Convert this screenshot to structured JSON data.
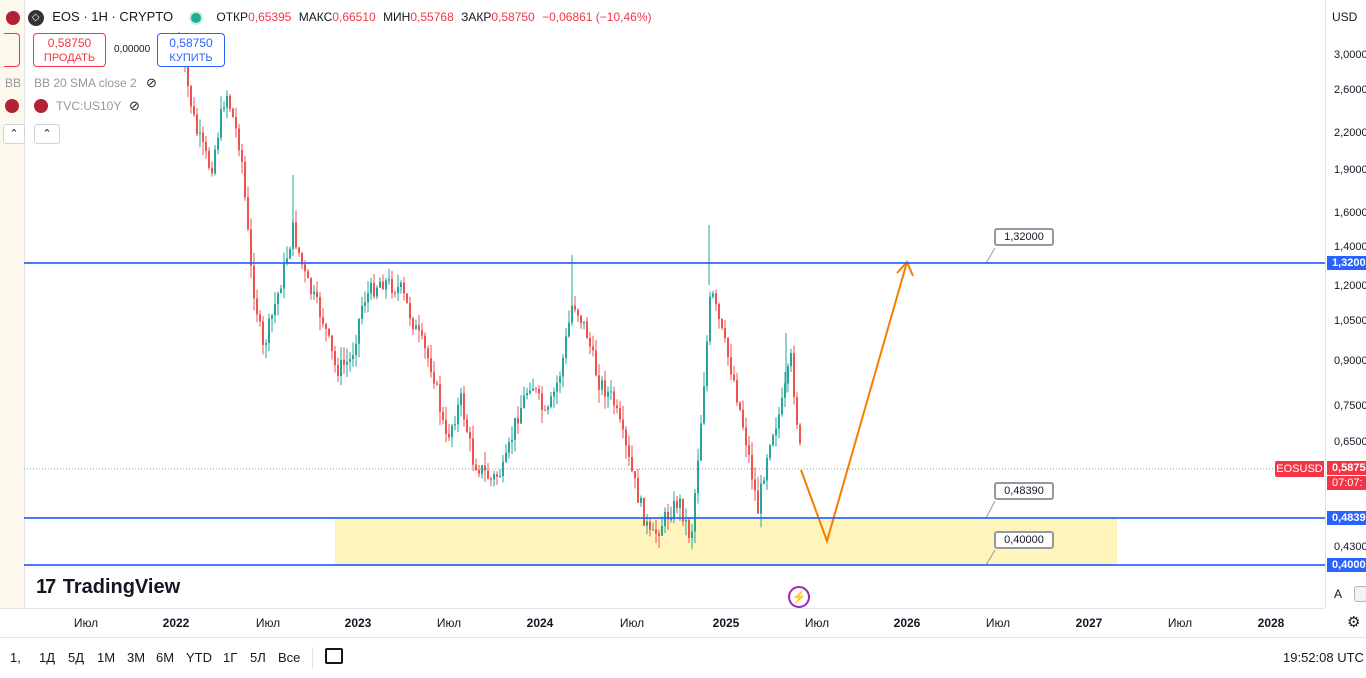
{
  "symbol": {
    "name": "EOS · 1H · CRYPTO",
    "open_label": "ОТКР",
    "open_value": "0,65395",
    "high_label": "МАКС",
    "high_value": "0,66510",
    "low_label": "МИН",
    "low_value": "0,55768",
    "close_label": "ЗАКР",
    "close_value": "0,58750",
    "change": "−0,06861 (−10,46%)"
  },
  "trade": {
    "sell_price": "0,58750",
    "sell_label": "ПРОДАТЬ",
    "spread": "0,00000",
    "buy_price": "0,58750",
    "buy_label": "КУПИТЬ"
  },
  "indicators": {
    "bb_label": "BB 20 SMA close 2",
    "bb_short": "BB",
    "tvc_label": "TVC:US10Y"
  },
  "price_axis": {
    "currency": "USD",
    "labels": [
      "3,0000",
      "2,6000",
      "2,2000",
      "1,9000",
      "1,6000",
      "1,4000",
      "1,2000",
      "1,0500",
      "0,9000",
      "0,7500",
      "0,6500",
      "0,4300"
    ],
    "badge_1320": "1,3200",
    "badge_current": "0,5875",
    "badge_timer": "07:07:",
    "badge_4839": "0,4839",
    "badge_4000": "0,4000",
    "badge_symbol": "EOSUSD"
  },
  "levels": {
    "upper": "1,32000",
    "middle": "0,48390",
    "lower": "0,40000"
  },
  "time_axis": {
    "labels": [
      {
        "text": "Июл",
        "year": false
      },
      {
        "text": "2022",
        "year": true
      },
      {
        "text": "Июл",
        "year": false
      },
      {
        "text": "2023",
        "year": true
      },
      {
        "text": "Июл",
        "year": false
      },
      {
        "text": "2024",
        "year": true
      },
      {
        "text": "Июл",
        "year": false
      },
      {
        "text": "2025",
        "year": true
      },
      {
        "text": "Июл",
        "year": false
      },
      {
        "text": "2026",
        "year": true
      },
      {
        "text": "Июл",
        "year": false
      },
      {
        "text": "2027",
        "year": true
      },
      {
        "text": "Июл",
        "year": false
      },
      {
        "text": "2028",
        "year": true
      }
    ]
  },
  "branding": {
    "logo_mark": "17",
    "logo_text": "TradingView"
  },
  "bottom_bar": {
    "first": "1,",
    "timeframes": [
      "1Д",
      "5Д",
      "1М",
      "3М",
      "6М",
      "YTD",
      "1Г",
      "5Л",
      "Все"
    ],
    "clock": "19:52:08 UTC",
    "auto_label": "A"
  },
  "colors": {
    "up": "#26a69a",
    "down": "#ef5350",
    "level_line": "#2962ff",
    "zone": "#fff3b0",
    "projection": "#f57c00"
  }
}
